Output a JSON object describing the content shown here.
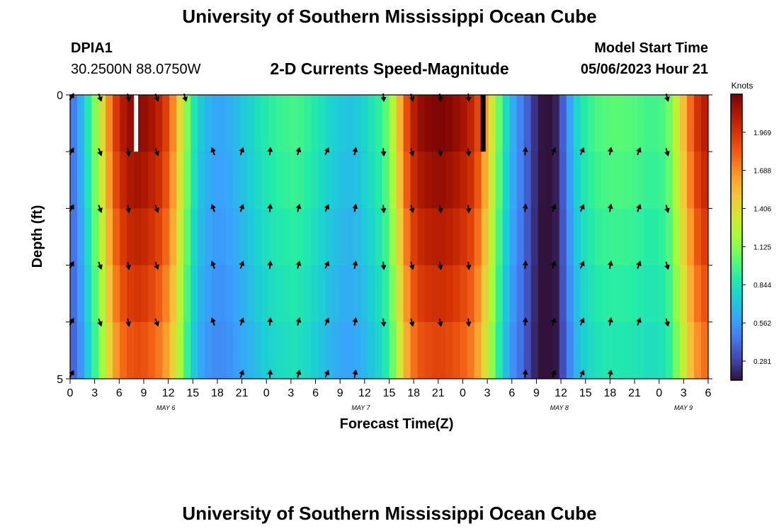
{
  "page": {
    "title": "University of Southern Mississippi Ocean Cube",
    "footer_title": "University of Southern Mississippi Ocean Cube",
    "station_id": "DPIA1",
    "coordinates": "30.2500N  88.0750W",
    "subtitle": "2-D Currents Speed-Magnitude",
    "model_start_label": "Model Start Time",
    "model_start_value": "05/06/2023 Hour 21"
  },
  "colors": {
    "colormap": [
      "#30123b",
      "#4145ab",
      "#4675ed",
      "#39a2fc",
      "#1bcfd4",
      "#24eca6",
      "#61fc6c",
      "#a4fc3b",
      "#d1e834",
      "#f3c63a",
      "#fe9b2d",
      "#f36315",
      "#d93806",
      "#b11901",
      "#7a0403"
    ],
    "arrow": "#000000",
    "gap": "#ffffff",
    "frame": "#000000"
  },
  "chart_data": {
    "type": "heatmap",
    "title": "2-D Currents Speed-Magnitude",
    "xlabel": "Forecast Time(Z)",
    "ylabel": "Depth (ft)",
    "xlim": [
      0,
      90
    ],
    "ylim": [
      0,
      5
    ],
    "x_tick_labels": [
      "0",
      "3",
      "6",
      "9",
      "12",
      "15",
      "18",
      "21",
      "0",
      "3",
      "6",
      "9",
      "12",
      "15",
      "18",
      "21",
      "0",
      "3",
      "6",
      "9",
      "12",
      "15",
      "18",
      "21",
      "0",
      "3",
      "6"
    ],
    "y_tick_labels": [
      {
        "value": 0,
        "label": "0"
      },
      {
        "value": 5,
        "label": "5"
      }
    ],
    "date_labels": [
      {
        "label": "MAY 6",
        "hour": 13.5
      },
      {
        "label": "MAY 7",
        "hour": 41
      },
      {
        "label": "MAY 8",
        "hour": 69
      },
      {
        "label": "MAY 9",
        "hour": 86.5
      }
    ],
    "colorbar": {
      "title": "Knots",
      "range": [
        0.14,
        2.25
      ],
      "ticks": [
        "0.281",
        "0.562",
        "0.844",
        "1.125",
        "1.406",
        "1.688",
        "1.969"
      ]
    },
    "depth_levels": [
      0,
      1,
      2,
      3,
      4,
      5
    ],
    "surface_profile": [
      [
        0,
        0.4
      ],
      [
        1,
        0.55
      ],
      [
        2,
        0.75
      ],
      [
        3,
        1.0
      ],
      [
        4,
        1.25
      ],
      [
        5,
        1.55
      ],
      [
        6,
        1.85
      ],
      [
        7,
        2.05
      ],
      [
        8,
        2.15
      ],
      [
        9,
        2.2
      ],
      [
        10,
        2.2
      ],
      [
        11,
        2.15
      ],
      [
        12,
        2.1
      ],
      [
        13,
        2.0
      ],
      [
        14,
        1.85
      ],
      [
        15,
        1.55
      ],
      [
        16,
        1.25
      ],
      [
        17,
        0.95
      ],
      [
        18,
        0.75
      ],
      [
        19,
        0.68
      ],
      [
        20,
        0.62
      ],
      [
        21,
        0.6
      ],
      [
        22,
        0.62
      ],
      [
        24,
        0.7
      ],
      [
        26,
        0.8
      ],
      [
        28,
        0.9
      ],
      [
        30,
        0.95
      ],
      [
        32,
        0.98
      ],
      [
        34,
        0.9
      ],
      [
        36,
        0.8
      ],
      [
        38,
        0.72
      ],
      [
        40,
        0.7
      ],
      [
        42,
        0.8
      ],
      [
        44,
        0.95
      ],
      [
        45,
        1.1
      ],
      [
        46,
        1.4
      ],
      [
        47,
        1.75
      ],
      [
        48,
        2.0
      ],
      [
        49,
        2.15
      ],
      [
        50,
        2.2
      ],
      [
        52,
        2.25
      ],
      [
        54,
        2.2
      ],
      [
        56,
        2.1
      ],
      [
        57,
        2.0
      ],
      [
        58,
        1.8
      ],
      [
        59,
        1.5
      ],
      [
        60,
        1.2
      ],
      [
        61,
        0.9
      ],
      [
        62,
        0.7
      ],
      [
        63,
        0.55
      ],
      [
        64,
        0.45
      ],
      [
        65,
        0.3
      ],
      [
        66,
        0.18
      ],
      [
        67,
        0.12
      ],
      [
        68,
        0.12
      ],
      [
        69,
        0.25
      ],
      [
        70,
        0.5
      ],
      [
        71,
        0.7
      ],
      [
        72,
        0.85
      ],
      [
        74,
        0.98
      ],
      [
        76,
        1.02
      ],
      [
        78,
        1.02
      ],
      [
        80,
        1.0
      ],
      [
        82,
        0.95
      ],
      [
        84,
        1.0
      ],
      [
        85,
        1.15
      ],
      [
        86,
        1.4
      ],
      [
        87,
        1.65
      ],
      [
        88,
        1.9
      ],
      [
        89,
        2.05
      ],
      [
        90,
        2.1
      ]
    ],
    "depth_factors": [
      1.0,
      0.97,
      0.93,
      0.89,
      0.85,
      0.8
    ],
    "gaps": [
      {
        "hour_start": 9.0,
        "hour_end": 9.6,
        "depth_start": 0,
        "depth_end": 1,
        "fill": "white"
      },
      {
        "hour_start": 57.9,
        "hour_end": 58.6,
        "depth_start": 0,
        "depth_end": 1,
        "fill": "black"
      }
    ],
    "arrow_hours": [
      0,
      4,
      8,
      12,
      16,
      20,
      24,
      28,
      32,
      36,
      40,
      44,
      48,
      52,
      56,
      60,
      64,
      68,
      72,
      76,
      80,
      84,
      88
    ],
    "arrow_depths": [
      0.04,
      1.0,
      2.0,
      3.0,
      4.0,
      4.92
    ],
    "arrow_directions_deg": [
      30,
      160,
      170,
      160,
      165,
      340,
      20,
      5,
      15,
      25,
      10,
      175,
      165,
      170,
      175,
      0,
      5,
      20,
      25,
      10,
      20,
      165,
      25
    ],
    "arrow_rows": [
      [
        true,
        true,
        true,
        true,
        true,
        false,
        false,
        false,
        false,
        false,
        false,
        true,
        true,
        true,
        true,
        false,
        false,
        false,
        false,
        false,
        false,
        true,
        false
      ],
      [
        true,
        true,
        true,
        true,
        false,
        true,
        true,
        true,
        true,
        true,
        true,
        true,
        true,
        true,
        true,
        false,
        true,
        true,
        true,
        true,
        true,
        true,
        false
      ],
      [
        true,
        true,
        true,
        true,
        false,
        true,
        true,
        true,
        true,
        true,
        true,
        true,
        true,
        true,
        true,
        false,
        true,
        true,
        true,
        true,
        true,
        true,
        false
      ],
      [
        true,
        true,
        true,
        true,
        false,
        true,
        true,
        true,
        true,
        true,
        true,
        true,
        true,
        true,
        true,
        false,
        true,
        true,
        true,
        true,
        true,
        true,
        false
      ],
      [
        true,
        true,
        true,
        true,
        false,
        true,
        true,
        true,
        true,
        true,
        true,
        true,
        true,
        true,
        true,
        false,
        true,
        true,
        true,
        true,
        true,
        true,
        false
      ],
      [
        true,
        false,
        false,
        false,
        false,
        false,
        true,
        true,
        true,
        true,
        true,
        false,
        false,
        false,
        false,
        false,
        true,
        true,
        true,
        true,
        false,
        false,
        false
      ]
    ]
  }
}
